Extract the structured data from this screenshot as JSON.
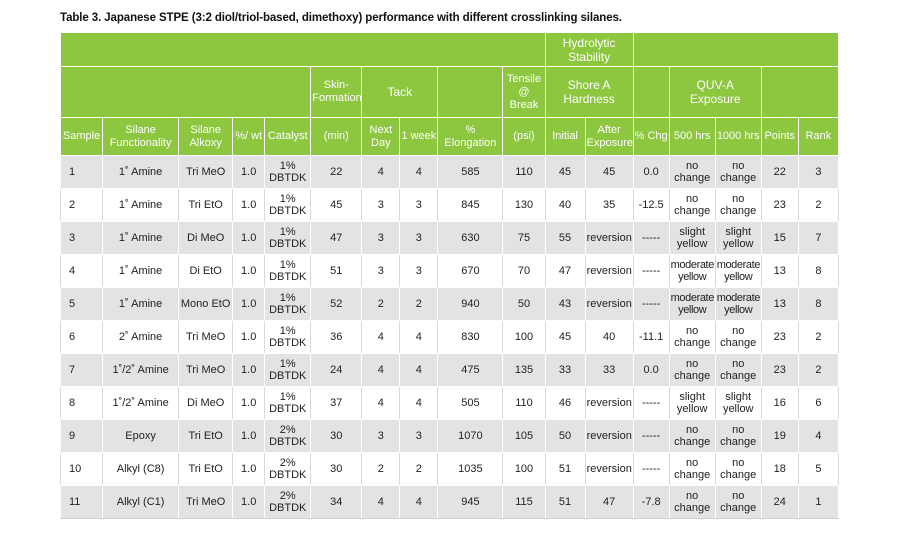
{
  "caption": "Table 3. Japanese STPE (3:2 diol/triol-based, dimethoxy) performance with different crosslinking silanes.",
  "header": {
    "hydrolytic_stability": "Hydrolytic Stability",
    "skin_formation": "Skin-Formation",
    "tack": "Tack",
    "tensile_at_break": "Tensile @ Break",
    "shore_a_hardness": "Shore A Hardness",
    "quv_a_exposure": "QUV-A Exposure",
    "sample": "Sample",
    "silane_functionality": "Silane Functionality",
    "silane_alkoxy": "Silane Alkoxy",
    "pct_wt": "%/ wt",
    "catalyst": "Catalyst",
    "min": "(min)",
    "next_day": "Next Day",
    "one_week": "1 week",
    "pct_elongation": "% Elongation",
    "psi": "(psi)",
    "initial": "Initial",
    "after_exposure": "After Exposure",
    "pct_chg": "% Chg",
    "h500": "500 hrs",
    "h1000": "1000 hrs",
    "points": "Points",
    "rank": "Rank"
  },
  "rows": [
    {
      "sample": "1",
      "func": "1˚ Amine",
      "alkoxy": "Tri MeO",
      "wt": "1.0",
      "cat": "1% DBTDK",
      "skin": "22",
      "next_day": "4",
      "week": "4",
      "elong": "585",
      "psi": "110",
      "initial": "45",
      "after": "45",
      "chg": "0.0",
      "h500": "no change",
      "h1000": "no change",
      "points": "22",
      "rank": "3"
    },
    {
      "sample": "2",
      "func": "1˚ Amine",
      "alkoxy": "Tri EtO",
      "wt": "1.0",
      "cat": "1% DBTDK",
      "skin": "45",
      "next_day": "3",
      "week": "3",
      "elong": "845",
      "psi": "130",
      "initial": "40",
      "after": "35",
      "chg": "-12.5",
      "h500": "no change",
      "h1000": "no change",
      "points": "23",
      "rank": "2"
    },
    {
      "sample": "3",
      "func": "1˚ Amine",
      "alkoxy": "Di MeO",
      "wt": "1.0",
      "cat": "1% DBTDK",
      "skin": "47",
      "next_day": "3",
      "week": "3",
      "elong": "630",
      "psi": "75",
      "initial": "55",
      "after": "reversion",
      "chg": "-----",
      "h500": "slight yellow",
      "h1000": "slight yellow",
      "points": "15",
      "rank": "7"
    },
    {
      "sample": "4",
      "func": "1˚ Amine",
      "alkoxy": "Di EtO",
      "wt": "1.0",
      "cat": "1% DBTDK",
      "skin": "51",
      "next_day": "3",
      "week": "3",
      "elong": "670",
      "psi": "70",
      "initial": "47",
      "after": "reversion",
      "chg": "-----",
      "h500": "moderate yellow",
      "h1000": "moderate yellow",
      "points": "13",
      "rank": "8"
    },
    {
      "sample": "5",
      "func": "1˚ Amine",
      "alkoxy": "Mono EtO",
      "wt": "1.0",
      "cat": "1% DBTDK",
      "skin": "52",
      "next_day": "2",
      "week": "2",
      "elong": "940",
      "psi": "50",
      "initial": "43",
      "after": "reversion",
      "chg": "-----",
      "h500": "moderate yellow",
      "h1000": "moderate yellow",
      "points": "13",
      "rank": "8"
    },
    {
      "sample": "6",
      "func": "2˚ Amine",
      "alkoxy": "Tri MeO",
      "wt": "1.0",
      "cat": "1% DBTDK",
      "skin": "36",
      "next_day": "4",
      "week": "4",
      "elong": "830",
      "psi": "100",
      "initial": "45",
      "after": "40",
      "chg": "-11.1",
      "h500": "no change",
      "h1000": "no change",
      "points": "23",
      "rank": "2"
    },
    {
      "sample": "7",
      "func": "1˚/2˚ Amine",
      "alkoxy": "Tri MeO",
      "wt": "1.0",
      "cat": "1% DBTDK",
      "skin": "24",
      "next_day": "4",
      "week": "4",
      "elong": "475",
      "psi": "135",
      "initial": "33",
      "after": "33",
      "chg": "0.0",
      "h500": "no change",
      "h1000": "no change",
      "points": "23",
      "rank": "2"
    },
    {
      "sample": "8",
      "func": "1˚/2˚ Amine",
      "alkoxy": "Di MeO",
      "wt": "1.0",
      "cat": "1% DBTDK",
      "skin": "37",
      "next_day": "4",
      "week": "4",
      "elong": "505",
      "psi": "110",
      "initial": "46",
      "after": "reversion",
      "chg": "-----",
      "h500": "slight yellow",
      "h1000": "slight yellow",
      "points": "16",
      "rank": "6"
    },
    {
      "sample": "9",
      "func": "Epoxy",
      "alkoxy": "Tri EtO",
      "wt": "1.0",
      "cat": "2% DBTDK",
      "skin": "30",
      "next_day": "3",
      "week": "3",
      "elong": "1070",
      "psi": "105",
      "initial": "50",
      "after": "reversion",
      "chg": "-----",
      "h500": "no change",
      "h1000": "no change",
      "points": "19",
      "rank": "4"
    },
    {
      "sample": "10",
      "func": "Alkyl (C8)",
      "alkoxy": "Tri EtO",
      "wt": "1.0",
      "cat": "2% DBTDK",
      "skin": "30",
      "next_day": "2",
      "week": "2",
      "elong": "1035",
      "psi": "100",
      "initial": "51",
      "after": "reversion",
      "chg": "-----",
      "h500": "no change",
      "h1000": "no change",
      "points": "18",
      "rank": "5"
    },
    {
      "sample": "11",
      "func": "Alkyl (C1)",
      "alkoxy": "Tri MeO",
      "wt": "1.0",
      "cat": "2% DBTDK",
      "skin": "34",
      "next_day": "4",
      "week": "4",
      "elong": "945",
      "psi": "115",
      "initial": "51",
      "after": "47",
      "chg": "-7.8",
      "h500": "no change",
      "h1000": "no change",
      "points": "24",
      "rank": "1"
    }
  ]
}
